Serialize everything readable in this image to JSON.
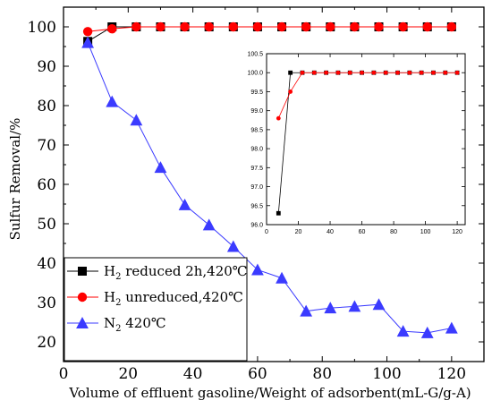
{
  "chart_data": {
    "type": "line",
    "xlabel": "Volume of effluent gasoline/Weight of adsorbent(mL-G/g-A)",
    "ylabel": "Sulfur Removal/%",
    "xlim": [
      0,
      130
    ],
    "ylim": [
      15,
      105
    ],
    "xticks": [
      "0",
      "20",
      "40",
      "60",
      "80",
      "100",
      "120"
    ],
    "yticks": [
      "20",
      "30",
      "40",
      "50",
      "60",
      "70",
      "80",
      "90",
      "100"
    ],
    "legend_position": "bottom-left",
    "legend": [
      {
        "base": "H",
        "sub": "2",
        "rest": " reduced 2h,420℃"
      },
      {
        "base": "H",
        "sub": "2",
        "rest": " unreduced,420℃"
      },
      {
        "base": "N",
        "sub": "2",
        "rest": " 420℃"
      }
    ],
    "series": [
      {
        "color": "#000000",
        "marker": "square",
        "x": [
          7.5,
          15,
          22.5,
          30,
          37.5,
          45,
          52.5,
          60,
          67.5,
          75,
          82.5,
          90,
          97.5,
          105,
          112.5,
          120
        ],
        "values": [
          96.3,
          100,
          100,
          100,
          100,
          100,
          100,
          100,
          100,
          100,
          100,
          100,
          100,
          100,
          100,
          100
        ]
      },
      {
        "color": "#ff0000",
        "marker": "circle",
        "x": [
          7.5,
          15,
          22.5,
          30,
          37.5,
          45,
          52.5,
          60,
          67.5,
          75,
          82.5,
          90,
          97.5,
          105,
          112.5,
          120
        ],
        "values": [
          98.8,
          99.5,
          100,
          100,
          100,
          100,
          100,
          100,
          100,
          100,
          100,
          100,
          100,
          100,
          100,
          100
        ]
      },
      {
        "color": "#3b3bff",
        "marker": "triangle",
        "x": [
          7.5,
          15,
          22.5,
          30,
          37.5,
          45,
          52.5,
          60,
          67.5,
          75,
          82.5,
          90,
          97.5,
          105,
          112.5,
          120
        ],
        "values": [
          96.0,
          81.0,
          76.3,
          64.3,
          54.8,
          49.7,
          44.2,
          38.3,
          36.2,
          27.8,
          28.6,
          29.0,
          29.5,
          22.7,
          22.3,
          23.5
        ]
      }
    ],
    "inset": {
      "type": "line",
      "xlim": [
        0,
        125
      ],
      "ylim": [
        96.0,
        100.5
      ],
      "xticks": [
        "0",
        "20",
        "40",
        "60",
        "80",
        "100",
        "120"
      ],
      "yticks": [
        "96.0",
        "96.5",
        "97.0",
        "97.5",
        "98.0",
        "98.5",
        "99.0",
        "99.5",
        "100.0",
        "100.5"
      ],
      "series_refs": [
        0,
        1
      ]
    }
  }
}
